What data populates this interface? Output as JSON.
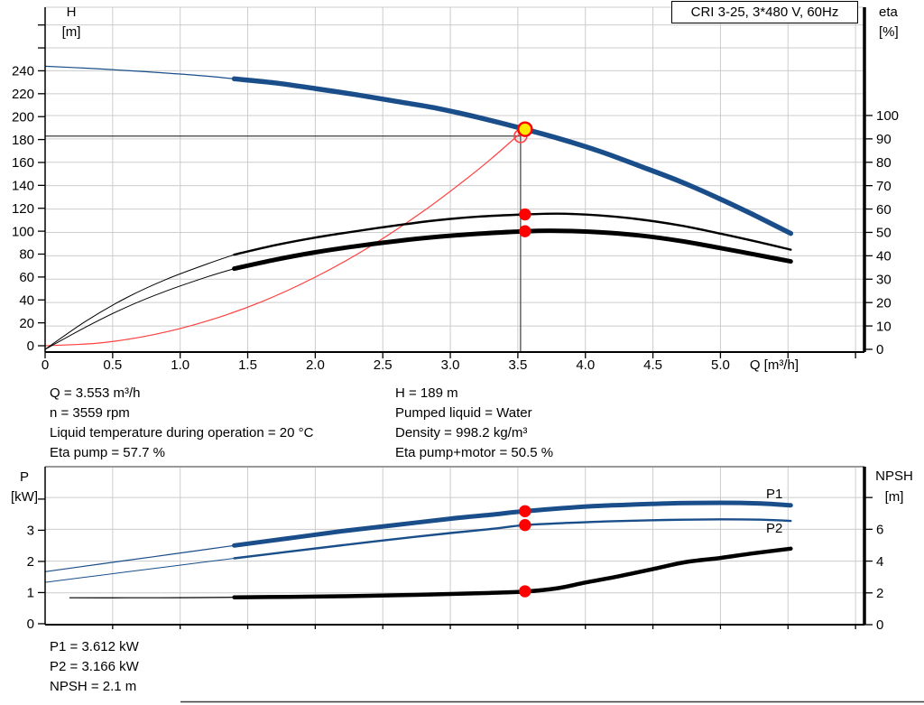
{
  "title_box": "CRI 3-25, 3*480 V, 60Hz",
  "axis_titles": {
    "top_left": [
      "H",
      "[m]"
    ],
    "top_right": [
      "eta",
      "[%]"
    ],
    "x": "Q [m³/h]",
    "bottom_left": [
      "P",
      "[kW]"
    ],
    "bottom_right": [
      "NPSH",
      "[m]"
    ]
  },
  "annotations": {
    "top_left": [
      "Q = 3.553 m³/h",
      "n = 3559 rpm",
      "Liquid temperature during operation = 20 °C",
      "Eta pump = 57.7 %"
    ],
    "top_right": [
      "H = 189 m",
      "Pumped liquid = Water",
      "Density = 998.2 kg/m³",
      "Eta pump+motor = 50.5 %"
    ],
    "bottom": [
      "P1 = 3.612 kW",
      "P2 = 3.166 kW",
      "NPSH = 2.1 m"
    ]
  },
  "colors": {
    "curve_blue": "#1A4E8A",
    "label_blue": "#2B5F9E",
    "red": "#FF0000",
    "light_red": "#FF4040",
    "yellow": "#FFE800",
    "grid": "#CCCCCC",
    "crosshair": "#3C3C3C",
    "axis": "#000000",
    "chart_top_border": "#999999"
  },
  "chart_data": [
    {
      "type": "line",
      "name": "qh-eta-chart",
      "x_axis": {
        "label": "Q [m³/h]",
        "range": [
          0,
          6.066
        ],
        "gridlines": [
          0.5,
          1,
          1.5,
          2,
          2.5,
          3,
          3.5,
          4,
          4.5,
          5,
          5.5,
          6
        ],
        "ticks": [
          {
            "v": 0,
            "label": "0"
          },
          {
            "v": 0.5,
            "label": "0.5"
          },
          {
            "v": 1,
            "label": "1.0"
          },
          {
            "v": 1.5,
            "label": "1.5"
          },
          {
            "v": 2,
            "label": "2.0"
          },
          {
            "v": 2.5,
            "label": "2.5"
          },
          {
            "v": 3,
            "label": "3.0"
          },
          {
            "v": 3.5,
            "label": "3.5"
          },
          {
            "v": 4,
            "label": "4.0"
          },
          {
            "v": 4.5,
            "label": "4.5"
          },
          {
            "v": 5,
            "label": "5.0"
          },
          {
            "v": 5.5
          },
          {
            "v": 6
          }
        ]
      },
      "left_axis": {
        "title": "H [m]",
        "range": [
          -5.5,
          295.5
        ],
        "gridlines": [
          220,
          240,
          260,
          280
        ],
        "ticks": [
          {
            "v": 0,
            "label": "0"
          },
          {
            "v": 20,
            "label": "20"
          },
          {
            "v": 40,
            "label": "40"
          },
          {
            "v": 60,
            "label": "60"
          },
          {
            "v": 80,
            "label": "80"
          },
          {
            "v": 100,
            "label": "100"
          },
          {
            "v": 120,
            "label": "120"
          },
          {
            "v": 140,
            "label": "140"
          },
          {
            "v": 160,
            "label": "160"
          },
          {
            "v": 180,
            "label": "180"
          },
          {
            "v": 200,
            "label": "200"
          },
          {
            "v": 220,
            "label": "220"
          },
          {
            "v": 240,
            "label": "240"
          },
          {
            "v": 260
          },
          {
            "v": 280
          }
        ]
      },
      "right_axis": {
        "title": "eta [%]",
        "range": [
          -1.16,
          146.3
        ],
        "gridlines": [
          10,
          20,
          30,
          40,
          50,
          60,
          70,
          80,
          90,
          100
        ],
        "ticks": [
          {
            "v": 0,
            "label": "0"
          },
          {
            "v": 10,
            "label": "10"
          },
          {
            "v": 20,
            "label": "20"
          },
          {
            "v": 30,
            "label": "30"
          },
          {
            "v": 40,
            "label": "40"
          },
          {
            "v": 50,
            "label": "50"
          },
          {
            "v": 60,
            "label": "60"
          },
          {
            "v": 70,
            "label": "70"
          },
          {
            "v": 80,
            "label": "80"
          },
          {
            "v": 90,
            "label": "90"
          },
          {
            "v": 100,
            "label": "100"
          }
        ]
      },
      "crosshair": {
        "q": 3.52,
        "value": 183,
        "axis": "left"
      },
      "series": [
        {
          "id": "system-curve",
          "label": "",
          "axis": "left",
          "color": "#FF4040",
          "width_thin": 1.2,
          "points": [
            [
              0,
              0
            ],
            [
              0.4,
              2.4
            ],
            [
              0.8,
              9.6
            ],
            [
              1.2,
              21.6
            ],
            [
              1.6,
              38.3
            ],
            [
              2.0,
              59.9
            ],
            [
              2.4,
              86.2
            ],
            [
              2.8,
              117.4
            ],
            [
              3.1,
              143.9
            ],
            [
              3.3,
              163
            ],
            [
              3.553,
              189
            ]
          ]
        },
        {
          "id": "h-curve",
          "label": "",
          "axis": "left",
          "color": "#1A4E8A",
          "split_q": 1.4,
          "width_thin": 1.2,
          "width_thick": 5.5,
          "points": [
            [
              0,
              244
            ],
            [
              0.3,
              242.3
            ],
            [
              0.6,
              240.3
            ],
            [
              0.9,
              238
            ],
            [
              1.2,
              235.3
            ],
            [
              1.4,
              233
            ],
            [
              1.7,
              229.5
            ],
            [
              2.0,
              224.5
            ],
            [
              2.3,
              219.2
            ],
            [
              2.6,
              213.3
            ],
            [
              2.9,
              207.3
            ],
            [
              3.2,
              199.5
            ],
            [
              3.553,
              189
            ],
            [
              3.8,
              181
            ],
            [
              4.1,
              170
            ],
            [
              4.4,
              157
            ],
            [
              4.7,
              143.5
            ],
            [
              5.0,
              128
            ],
            [
              5.25,
              114
            ],
            [
              5.52,
              98
            ]
          ]
        },
        {
          "id": "eta-pump-curve",
          "label": "",
          "axis": "right",
          "color": "#000000",
          "split_q": 1.4,
          "width_thin": 1,
          "width_thick": 2.4,
          "points": [
            [
              0,
              0
            ],
            [
              0.3,
              12
            ],
            [
              0.6,
              22
            ],
            [
              0.9,
              30
            ],
            [
              1.2,
              36.5
            ],
            [
              1.4,
              40.5
            ],
            [
              1.7,
              44.5
            ],
            [
              2.0,
              47.8
            ],
            [
              2.3,
              50.5
            ],
            [
              2.6,
              53
            ],
            [
              2.9,
              55.2
            ],
            [
              3.2,
              56.7
            ],
            [
              3.553,
              57.7
            ],
            [
              3.8,
              58
            ],
            [
              4.1,
              57.3
            ],
            [
              4.4,
              55.6
            ],
            [
              4.7,
              53
            ],
            [
              5.0,
              49.5
            ],
            [
              5.25,
              46.3
            ],
            [
              5.52,
              42.6
            ]
          ]
        },
        {
          "id": "eta-pump-motor-curve",
          "label": "",
          "axis": "right",
          "color": "#000000",
          "split_q": 1.4,
          "width_thin": 1,
          "width_thick": 5,
          "points": [
            [
              0,
              0
            ],
            [
              0.3,
              9.5
            ],
            [
              0.6,
              18
            ],
            [
              0.9,
              25
            ],
            [
              1.2,
              31
            ],
            [
              1.4,
              34.5
            ],
            [
              1.7,
              38.3
            ],
            [
              2.0,
              41.5
            ],
            [
              2.3,
              44.1
            ],
            [
              2.6,
              46.3
            ],
            [
              2.9,
              48.1
            ],
            [
              3.2,
              49.4
            ],
            [
              3.553,
              50.5
            ],
            [
              3.8,
              50.7
            ],
            [
              4.1,
              50.1
            ],
            [
              4.4,
              48.7
            ],
            [
              4.7,
              46.4
            ],
            [
              5.0,
              43.3
            ],
            [
              5.25,
              40.6
            ],
            [
              5.52,
              37.6
            ]
          ]
        }
      ],
      "markers": [
        {
          "name": "requested-duty-marker",
          "q": 3.52,
          "value": 183,
          "axis": "left",
          "kind": "open"
        },
        {
          "name": "eta-pump-marker",
          "q": 3.553,
          "value": 57.7,
          "axis": "right",
          "kind": "dot"
        },
        {
          "name": "eta-pump-motor-marker",
          "q": 3.553,
          "value": 50.5,
          "axis": "right",
          "kind": "dot"
        },
        {
          "name": "duty-point-marker",
          "q": 3.553,
          "value": 189,
          "axis": "left",
          "kind": "duty"
        }
      ]
    },
    {
      "type": "line",
      "name": "power-npsh-chart",
      "x_axis": {
        "label": "",
        "range": [
          0,
          6.066
        ],
        "gridlines": [
          0.5,
          1,
          1.5,
          2,
          2.5,
          3,
          3.5,
          4,
          4.5,
          5,
          5.5,
          6
        ],
        "ticks": [
          {
            "v": 0.5
          },
          {
            "v": 1
          },
          {
            "v": 1.5
          },
          {
            "v": 2
          },
          {
            "v": 2.5
          },
          {
            "v": 3
          },
          {
            "v": 3.5
          },
          {
            "v": 4
          },
          {
            "v": 4.5
          },
          {
            "v": 5
          },
          {
            "v": 5.5
          },
          {
            "v": 6
          }
        ]
      },
      "left_axis": {
        "title": "P [kW]",
        "range": [
          -0.03,
          5.04
        ],
        "gridlines": [],
        "ticks": [
          {
            "v": 0,
            "label": "0"
          },
          {
            "v": 1,
            "label": "1"
          },
          {
            "v": 2,
            "label": "2"
          },
          {
            "v": 3,
            "label": "3"
          },
          {
            "v": 4
          }
        ]
      },
      "right_axis": {
        "title": "NPSH [m]",
        "range": [
          0,
          9.94
        ],
        "gridlines": [
          2,
          4,
          6,
          8
        ],
        "ticks": [
          {
            "v": 0,
            "label": "0"
          },
          {
            "v": 2,
            "label": "2"
          },
          {
            "v": 4,
            "label": "4"
          },
          {
            "v": 6,
            "label": "6"
          },
          {
            "v": 8
          }
        ]
      },
      "series": [
        {
          "id": "p1-curve",
          "label": "P1",
          "axis": "left",
          "color": "#1A4E8A",
          "split_q": 1.4,
          "width_thin": 1.2,
          "width_thick": 5,
          "points": [
            [
              0,
              1.67
            ],
            [
              0.4,
              1.91
            ],
            [
              0.8,
              2.15
            ],
            [
              1.2,
              2.39
            ],
            [
              1.4,
              2.51
            ],
            [
              1.8,
              2.74
            ],
            [
              2.2,
              2.97
            ],
            [
              2.6,
              3.17
            ],
            [
              3.0,
              3.37
            ],
            [
              3.3,
              3.5
            ],
            [
              3.553,
              3.612
            ],
            [
              3.9,
              3.73
            ],
            [
              4.2,
              3.8
            ],
            [
              4.6,
              3.86
            ],
            [
              5.0,
              3.88
            ],
            [
              5.3,
              3.86
            ],
            [
              5.52,
              3.8
            ]
          ]
        },
        {
          "id": "p2-curve",
          "label": "P2",
          "axis": "left",
          "color": "#1A4E8A",
          "split_q": 1.4,
          "width_thin": 1,
          "width_thick": 2.4,
          "points": [
            [
              0,
              1.33
            ],
            [
              0.4,
              1.55
            ],
            [
              0.8,
              1.77
            ],
            [
              1.2,
              1.99
            ],
            [
              1.4,
              2.1
            ],
            [
              1.8,
              2.31
            ],
            [
              2.2,
              2.52
            ],
            [
              2.6,
              2.72
            ],
            [
              3.0,
              2.91
            ],
            [
              3.3,
              3.04
            ],
            [
              3.553,
              3.166
            ],
            [
              3.9,
              3.24
            ],
            [
              4.2,
              3.29
            ],
            [
              4.6,
              3.33
            ],
            [
              5.0,
              3.35
            ],
            [
              5.3,
              3.34
            ],
            [
              5.52,
              3.3
            ]
          ]
        },
        {
          "id": "npsh-curve",
          "label": "",
          "axis": "right",
          "color": "#000000",
          "split_q": 1.4,
          "width_thin": 1.2,
          "width_thick": 4.5,
          "points": [
            [
              0.18,
              1.69
            ],
            [
              0.6,
              1.69
            ],
            [
              1.0,
              1.7
            ],
            [
              1.4,
              1.72
            ],
            [
              1.8,
              1.75
            ],
            [
              2.2,
              1.79
            ],
            [
              2.6,
              1.85
            ],
            [
              3.0,
              1.93
            ],
            [
              3.3,
              2.0
            ],
            [
              3.553,
              2.08
            ],
            [
              3.8,
              2.3
            ],
            [
              4.0,
              2.65
            ],
            [
              4.25,
              3.05
            ],
            [
              4.5,
              3.5
            ],
            [
              4.75,
              3.95
            ],
            [
              5.0,
              4.2
            ],
            [
              5.25,
              4.5
            ],
            [
              5.52,
              4.78
            ]
          ]
        }
      ],
      "markers": [
        {
          "name": "p1-marker",
          "q": 3.553,
          "value": 3.612,
          "axis": "left",
          "kind": "dot"
        },
        {
          "name": "p2-marker",
          "q": 3.553,
          "value": 3.166,
          "axis": "left",
          "kind": "dot"
        },
        {
          "name": "npsh-marker",
          "q": 3.553,
          "value": 2.1,
          "axis": "right",
          "kind": "dot"
        }
      ]
    }
  ],
  "operating_point": {
    "Q": "3.553 m³/h",
    "H": "189 m",
    "eta_pump": "57.7 %",
    "eta_pump_motor": "50.5 %",
    "P1": "3.612 kW",
    "P2": "3.166 kW",
    "NPSH": "2.1 m",
    "n": "3559 rpm"
  }
}
